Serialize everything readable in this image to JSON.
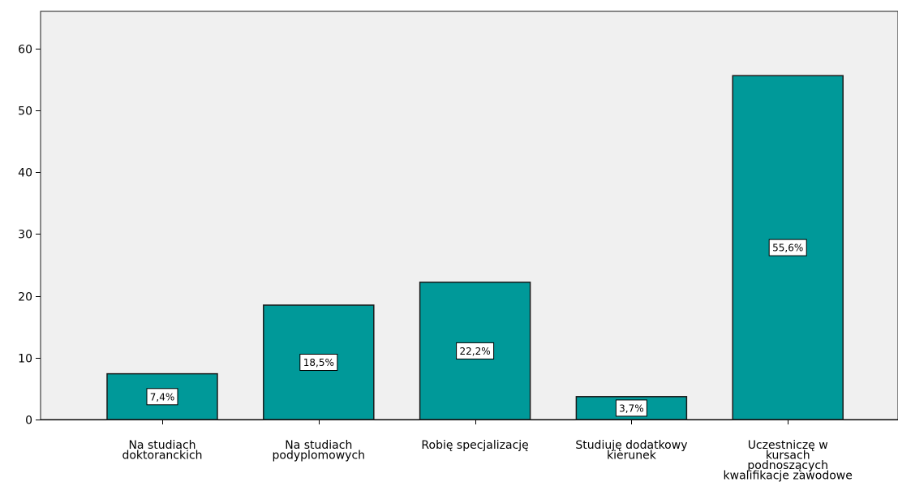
{
  "colors": {
    "plot_background": "#f0f0f0",
    "bar_fill": "#009999",
    "bar_stroke": "#1a1a1a",
    "label_box": "#ffffff"
  },
  "chart_data": {
    "type": "bar",
    "title": "",
    "xlabel": "",
    "ylabel": "",
    "ylim": [
      0,
      66
    ],
    "yticks": [
      0,
      10,
      20,
      30,
      40,
      50,
      60
    ],
    "grid": false,
    "categories": [
      [
        "Na studiach",
        "doktoranckich"
      ],
      [
        "Na studiach",
        "podyplomowych"
      ],
      [
        "Robię specjalizację"
      ],
      [
        "Studiuję dodatkowy",
        "kierunek"
      ],
      [
        "Uczestniczę w",
        "kursach",
        "podnoszących",
        "kwalifikacje zawodowe"
      ]
    ],
    "values": [
      7.4,
      18.5,
      22.2,
      3.7,
      55.6
    ],
    "data_labels": [
      "7,4%",
      "18,5%",
      "22,2%",
      "3,7%",
      "55,6%"
    ]
  }
}
